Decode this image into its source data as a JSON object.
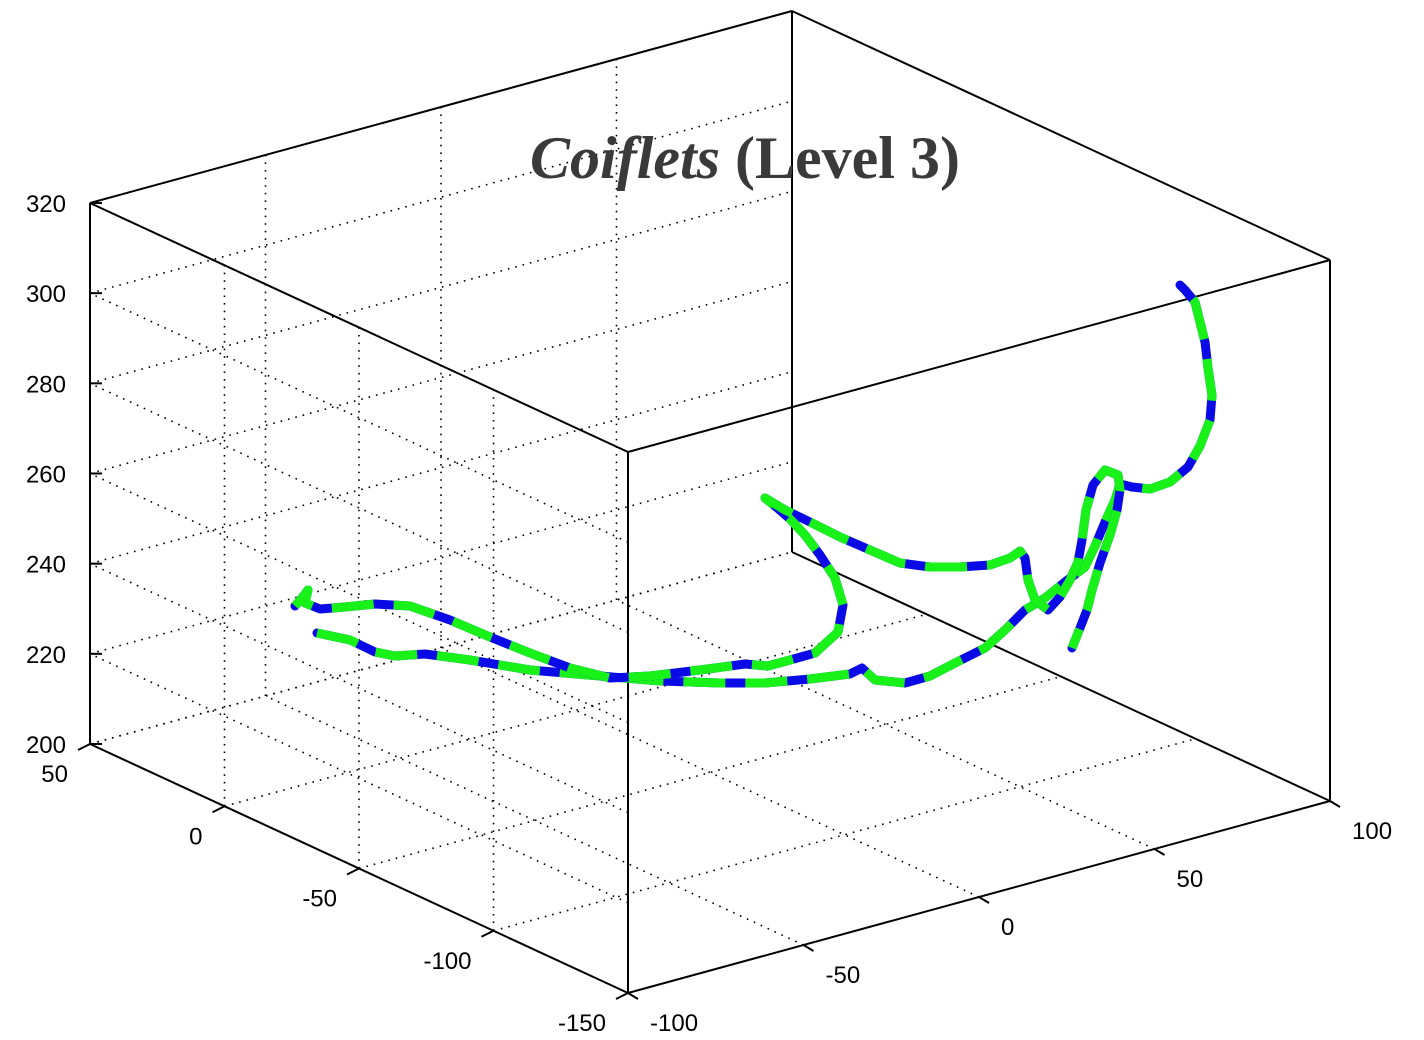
{
  "chart_data": {
    "type": "line3d",
    "title": {
      "italic_part": "Coiflets",
      "rest": " (Level 3)"
    },
    "axes": {
      "x": {
        "ticks": [
          -100,
          -50,
          0,
          50,
          100
        ],
        "tick_labels": [
          "-100",
          "-50",
          "0",
          "50",
          "100"
        ]
      },
      "y": {
        "ticks": [
          -150,
          -100,
          -50,
          0,
          50
        ],
        "tick_labels": [
          "-150",
          "-100",
          "-50",
          "0",
          "50"
        ]
      },
      "z": {
        "ticks": [
          200,
          220,
          240,
          260,
          280,
          300,
          320
        ],
        "tick_labels": [
          "200",
          "220",
          "240",
          "260",
          "280",
          "300",
          "320"
        ]
      }
    },
    "grid": true,
    "box": true,
    "colors": {
      "series_a": "#0a0ae6",
      "series_b": "#19f219",
      "axis": "#000000",
      "title": "#3a3a3a"
    },
    "series": [
      {
        "style": "solid-blue-green-dashed",
        "projected_trace": [
          [
            317,
            633
          ],
          [
            350,
            640
          ],
          [
            375,
            652
          ],
          [
            395,
            656
          ],
          [
            425,
            654
          ],
          [
            470,
            660
          ],
          [
            530,
            670
          ],
          [
            600,
            676
          ],
          [
            660,
            681
          ],
          [
            720,
            683
          ],
          [
            765,
            683
          ],
          [
            810,
            679
          ],
          [
            850,
            674
          ],
          [
            862,
            668
          ],
          [
            875,
            680
          ],
          [
            905,
            683
          ],
          [
            930,
            676
          ],
          [
            955,
            663
          ],
          [
            985,
            648
          ],
          [
            1005,
            630
          ],
          [
            1025,
            610
          ],
          [
            1045,
            598
          ],
          [
            1065,
            582
          ],
          [
            1085,
            567
          ],
          [
            1095,
            546
          ],
          [
            1105,
            522
          ],
          [
            1115,
            500
          ],
          [
            1120,
            484
          ],
          [
            1132,
            487
          ],
          [
            1150,
            489
          ],
          [
            1170,
            482
          ],
          [
            1188,
            467
          ],
          [
            1200,
            446
          ],
          [
            1210,
            420
          ],
          [
            1212,
            395
          ],
          [
            1208,
            368
          ],
          [
            1205,
            342
          ],
          [
            1200,
            322
          ],
          [
            1195,
            302
          ],
          [
            1185,
            290
          ],
          [
            1180,
            285
          ]
        ]
      },
      {
        "style": "solid-blue-green-dashed",
        "projected_trace": [
          [
            295,
            606
          ],
          [
            302,
            598
          ],
          [
            308,
            590
          ],
          [
            305,
            603
          ],
          [
            320,
            609
          ],
          [
            345,
            607
          ],
          [
            375,
            604
          ],
          [
            410,
            606
          ],
          [
            450,
            620
          ],
          [
            490,
            637
          ],
          [
            530,
            653
          ],
          [
            570,
            668
          ],
          [
            610,
            678
          ],
          [
            650,
            676
          ],
          [
            700,
            670
          ],
          [
            745,
            664
          ],
          [
            768,
            666
          ],
          [
            790,
            660
          ],
          [
            815,
            653
          ],
          [
            838,
            632
          ],
          [
            843,
            605
          ],
          [
            835,
            578
          ],
          [
            820,
            555
          ],
          [
            805,
            535
          ],
          [
            790,
            519
          ],
          [
            775,
            506
          ],
          [
            765,
            498
          ],
          [
            785,
            510
          ],
          [
            810,
            522
          ],
          [
            840,
            537
          ],
          [
            870,
            550
          ],
          [
            900,
            563
          ],
          [
            930,
            567
          ],
          [
            960,
            567
          ],
          [
            990,
            565
          ],
          [
            1010,
            558
          ],
          [
            1020,
            551
          ],
          [
            1025,
            558
          ],
          [
            1028,
            580
          ],
          [
            1035,
            600
          ],
          [
            1048,
            610
          ],
          [
            1060,
            597
          ],
          [
            1070,
            580
          ],
          [
            1078,
            562
          ],
          [
            1082,
            540
          ],
          [
            1086,
            510
          ],
          [
            1093,
            485
          ],
          [
            1105,
            470
          ],
          [
            1118,
            475
          ],
          [
            1120,
            490
          ],
          [
            1117,
            510
          ],
          [
            1110,
            535
          ],
          [
            1100,
            563
          ],
          [
            1092,
            590
          ],
          [
            1087,
            610
          ],
          [
            1080,
            628
          ],
          [
            1072,
            648
          ]
        ]
      }
    ]
  }
}
